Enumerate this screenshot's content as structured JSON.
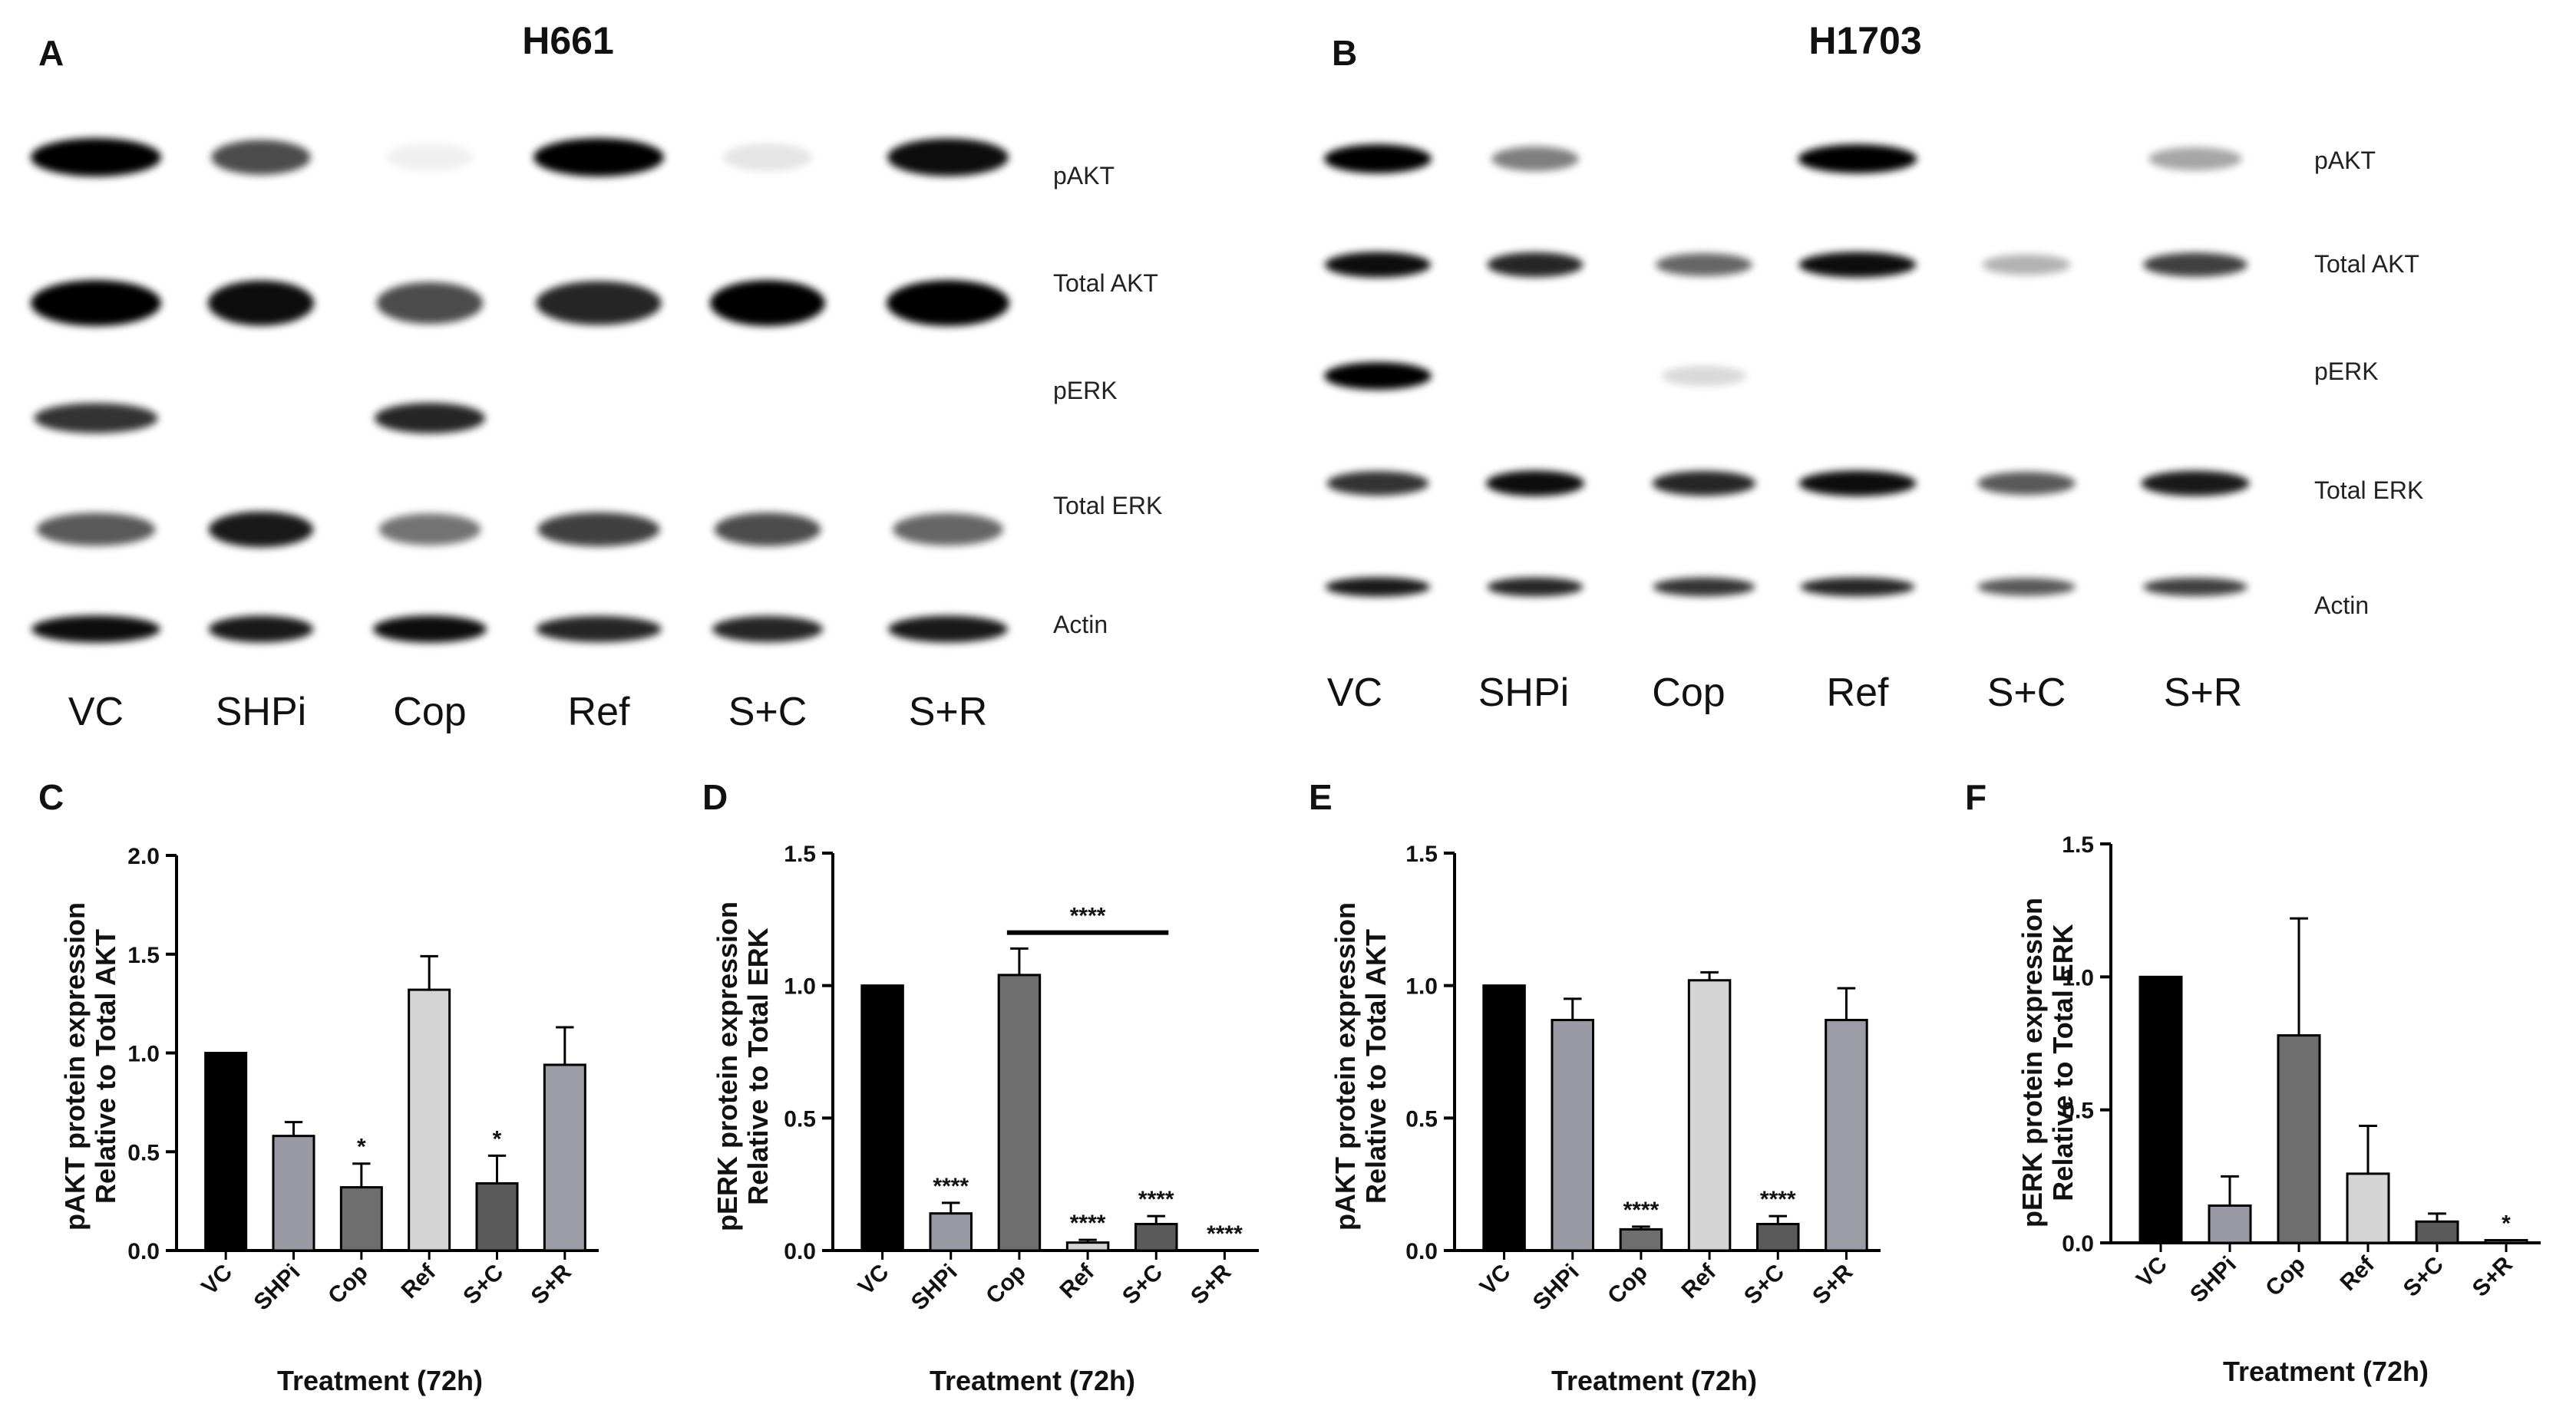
{
  "blots": [
    {
      "letter": "A",
      "title": "H661",
      "rows": [
        "pAKT",
        "Total AKT",
        "pERK",
        "Total ERK",
        "Actin"
      ],
      "lanes": [
        "VC",
        "SHPi",
        "Cop",
        "Ref",
        "S+C",
        "S+R"
      ],
      "intensity": [
        [
          1.0,
          0.7,
          0.06,
          1.0,
          0.1,
          0.95
        ],
        [
          1.0,
          0.95,
          0.7,
          0.85,
          1.0,
          1.0
        ],
        [
          0.8,
          0.0,
          0.85,
          0.0,
          0.0,
          0.0
        ],
        [
          0.65,
          0.9,
          0.55,
          0.75,
          0.7,
          0.6
        ],
        [
          0.95,
          0.9,
          0.95,
          0.85,
          0.85,
          0.9
        ]
      ]
    },
    {
      "letter": "B",
      "title": "H1703",
      "rows": [
        "pAKT",
        "Total AKT",
        "pERK",
        "Total ERK",
        "Actin"
      ],
      "lanes": [
        "VC",
        "SHPi",
        "Cop",
        "Ref",
        "S+C",
        "S+R"
      ],
      "intensity": [
        [
          1.0,
          0.5,
          0.0,
          1.0,
          0.0,
          0.35
        ],
        [
          0.95,
          0.85,
          0.6,
          0.95,
          0.3,
          0.75
        ],
        [
          1.0,
          0.0,
          0.15,
          0.0,
          0.0,
          0.0
        ],
        [
          0.8,
          0.95,
          0.85,
          0.95,
          0.65,
          0.9
        ],
        [
          0.9,
          0.85,
          0.8,
          0.85,
          0.65,
          0.75
        ]
      ]
    }
  ],
  "chart_data": [
    {
      "letter": "C",
      "type": "bar",
      "categories": [
        "VC",
        "SHPi",
        "Cop",
        "Ref",
        "S+C",
        "S+R"
      ],
      "values": [
        1.0,
        0.58,
        0.32,
        1.32,
        0.34,
        0.94
      ],
      "errors": [
        0,
        0.07,
        0.12,
        0.17,
        0.14,
        0.19
      ],
      "ylim": [
        0,
        2.0
      ],
      "yticks": [
        "0.0",
        "0.5",
        "1.0",
        "1.5",
        "2.0"
      ],
      "ytick_values": [
        0,
        0.5,
        1.0,
        1.5,
        2.0
      ],
      "ylabel_lines": [
        "pAKT protein expression",
        "Relative to Total AKT"
      ],
      "xlabel": "Treatment (72h)",
      "significance": [
        "",
        "",
        "*",
        "",
        "*",
        ""
      ],
      "bracket": null
    },
    {
      "letter": "D",
      "type": "bar",
      "categories": [
        "VC",
        "SHPi",
        "Cop",
        "Ref",
        "S+C",
        "S+R"
      ],
      "values": [
        1.0,
        0.14,
        1.04,
        0.03,
        0.1,
        0.0
      ],
      "errors": [
        0,
        0.04,
        0.1,
        0.01,
        0.03,
        0.0
      ],
      "ylim": [
        0,
        1.5
      ],
      "yticks": [
        "0.0",
        "0.5",
        "1.0",
        "1.5"
      ],
      "ytick_values": [
        0,
        0.5,
        1.0,
        1.5
      ],
      "ylabel_lines": [
        "pERK protein expression",
        "Relative to Total ERK"
      ],
      "xlabel": "Treatment (72h)",
      "significance": [
        "",
        "****",
        "",
        "****",
        "****",
        "****"
      ],
      "bracket": {
        "from": 2,
        "to": 4,
        "y": 1.2,
        "label": "****"
      }
    },
    {
      "letter": "E",
      "type": "bar",
      "categories": [
        "VC",
        "SHPi",
        "Cop",
        "Ref",
        "S+C",
        "S+R"
      ],
      "values": [
        1.0,
        0.87,
        0.08,
        1.02,
        0.1,
        0.87
      ],
      "errors": [
        0,
        0.08,
        0.01,
        0.03,
        0.03,
        0.12
      ],
      "ylim": [
        0,
        1.5
      ],
      "yticks": [
        "0.0",
        "0.5",
        "1.0",
        "1.5"
      ],
      "ytick_values": [
        0,
        0.5,
        1.0,
        1.5
      ],
      "ylabel_lines": [
        "pAKT protein expression",
        "Relative to Total AKT"
      ],
      "xlabel": "Treatment (72h)",
      "significance": [
        "",
        "",
        "****",
        "",
        "****",
        ""
      ],
      "bracket": null
    },
    {
      "letter": "F",
      "type": "bar",
      "categories": [
        "VC",
        "SHPi",
        "Cop",
        "Ref",
        "S+C",
        "S+R"
      ],
      "values": [
        1.0,
        0.14,
        0.78,
        0.26,
        0.08,
        0.01
      ],
      "errors": [
        0,
        0.11,
        0.44,
        0.18,
        0.03,
        0.0
      ],
      "ylim": [
        0,
        1.5
      ],
      "yticks": [
        "0.0",
        "0.5",
        "1.0",
        "1.5"
      ],
      "ytick_values": [
        0,
        0.5,
        1.0,
        1.5
      ],
      "ylabel_lines": [
        "pERK protein expression",
        "Relative to Total ERK"
      ],
      "xlabel": "Treatment (72h)",
      "significance": [
        "",
        "",
        "",
        "",
        "",
        "*"
      ],
      "bracket": null
    }
  ],
  "bar_colors": [
    "#000000",
    "#9a9aa4",
    "#6e6e6e",
    "#d4d4d4",
    "#5a5a5a",
    "#9c9ca6"
  ]
}
